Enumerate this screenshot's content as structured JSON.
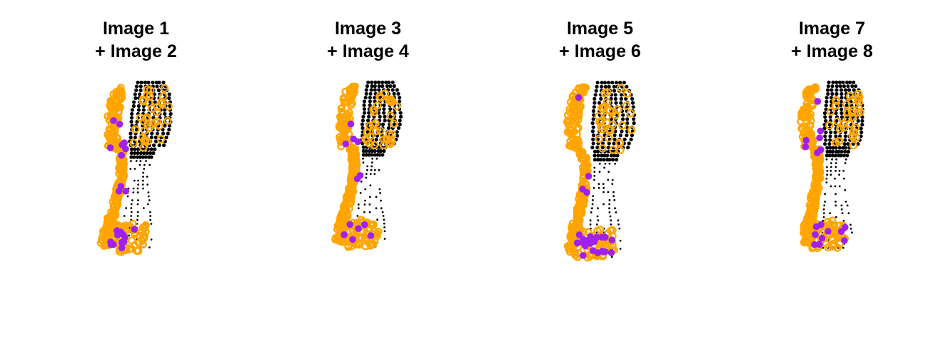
{
  "colors": {
    "background": "#ffffff",
    "grid_points": "#000000",
    "matched_outline": "#FFA500",
    "matched_fill": "#A020F0"
  },
  "chart_data": [
    {
      "type": "scatter",
      "title_line1": "Image 1",
      "title_line2": "+ Image 2",
      "grid": false,
      "series": [
        {
          "values": "dense black dot grid (forefoot) + sparse dots (midfoot/heel)"
        },
        {
          "values": "orange open circles along outer edge and forefoot"
        },
        {
          "values": "purple filled points"
        }
      ]
    },
    {
      "type": "scatter",
      "title_line1": "Image 3",
      "title_line2": "+ Image 4",
      "grid": false
    },
    {
      "type": "scatter",
      "title_line1": "Image 5",
      "title_line2": "+ Image 6",
      "grid": false
    },
    {
      "type": "scatter",
      "title_line1": "Image 7",
      "title_line2": "+ Image 8",
      "grid": false
    }
  ]
}
